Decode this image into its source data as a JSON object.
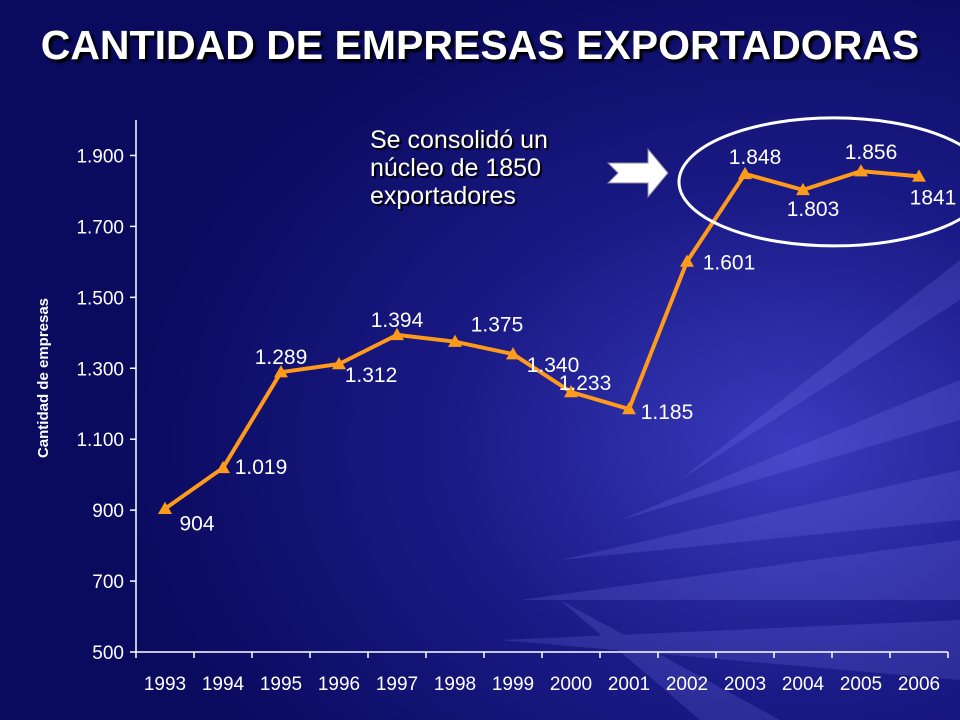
{
  "chart_data": {
    "type": "line",
    "title": "CANTIDAD DE EMPRESAS EXPORTADORAS",
    "ylabel": "Cantidad de empresas",
    "xlabel": "",
    "categories": [
      "1993",
      "1994",
      "1995",
      "1996",
      "1997",
      "1998",
      "1999",
      "2000",
      "2001",
      "2002",
      "2003",
      "2004",
      "2005",
      "2006"
    ],
    "series": [
      {
        "values": [
          904,
          1019,
          1289,
          1312,
          1394,
          1375,
          1340,
          1233,
          1185,
          1601,
          1848,
          1803,
          1856,
          1841
        ],
        "data_labels": [
          "904",
          "1.019",
          "1.289",
          "1.312",
          "1.394",
          "1.375",
          "1.340",
          "1.233",
          "1.185",
          "1.601",
          "1.848",
          "1.803",
          "1.856",
          "1841"
        ],
        "color": "#ff9a1a",
        "marker": "triangle"
      }
    ],
    "ylim": [
      500,
      2000
    ],
    "yticks": [
      500,
      700,
      900,
      1100,
      1300,
      1500,
      1700,
      1900
    ],
    "ytick_labels": [
      "500",
      "700",
      "900",
      "1.100",
      "1.300",
      "1.500",
      "1.700",
      "1.900"
    ],
    "grid": false,
    "legend": "none"
  },
  "annotation": {
    "text": "Se consolidó un núcleo de 1850 exportadores",
    "highlight_years": [
      "2003",
      "2004",
      "2005",
      "2006"
    ]
  },
  "colors": {
    "background": "#0c0c66",
    "line": "#ff9a1a",
    "text": "#ffffff"
  }
}
